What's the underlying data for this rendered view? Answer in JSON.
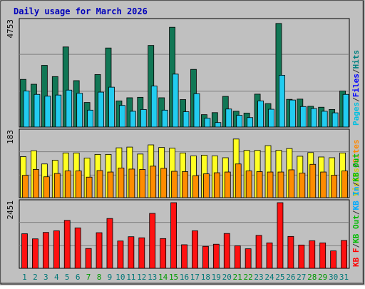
{
  "chart_data": [
    {
      "type": "bar",
      "title": "Daily usage for March 2026",
      "ylabel_top_tick": "4753",
      "legend": [
        {
          "label": "Pages",
          "color": "#00c0e0"
        },
        {
          "label": "/",
          "color": "#333333"
        },
        {
          "label": "Files",
          "color": "#0000ff"
        },
        {
          "label": "/",
          "color": "#333333"
        },
        {
          "label": "Hits",
          "color": "#008080"
        }
      ],
      "categories": [
        "1",
        "2",
        "3",
        "4",
        "5",
        "6",
        "7",
        "8",
        "9",
        "10",
        "11",
        "12",
        "13",
        "14",
        "15",
        "16",
        "17",
        "18",
        "19",
        "20",
        "21",
        "22",
        "23",
        "24",
        "25",
        "26",
        "27",
        "28",
        "29",
        "30",
        "31"
      ],
      "ylim": [
        0,
        4753
      ],
      "series": [
        {
          "name": "Hits",
          "color": "#117755",
          "values": [
            2116,
            1900,
            2740,
            2240,
            3556,
            2060,
            1090,
            2330,
            3510,
            1160,
            1300,
            1320,
            3624,
            1300,
            4430,
            1220,
            2560,
            550,
            640,
            1360,
            700,
            620,
            1460,
            1040,
            4600,
            1230,
            1240,
            920,
            880,
            780,
            1600
          ]
        },
        {
          "name": "Files",
          "color": "#22ccf0",
          "values": [
            1600,
            1450,
            1370,
            1420,
            1640,
            1500,
            750,
            1550,
            1770,
            960,
            700,
            780,
            1820,
            750,
            2350,
            680,
            1480,
            390,
            200,
            800,
            520,
            420,
            1160,
            790,
            2300,
            1200,
            910,
            820,
            700,
            630,
            1450
          ]
        },
        {
          "name": "Pages",
          "color": "#0088cc",
          "values": [
            0,
            0,
            0,
            0,
            0,
            0,
            0,
            0,
            0,
            0,
            0,
            0,
            0,
            0,
            0,
            0,
            0,
            0,
            0,
            0,
            0,
            0,
            0,
            0,
            0,
            0,
            0,
            0,
            0,
            0,
            0
          ]
        }
      ]
    },
    {
      "type": "bar",
      "ylabel_top_tick": "183",
      "legend": [
        {
          "label": "Visits",
          "color": "#cccc00"
        },
        {
          "label": "/",
          "color": "#333333"
        },
        {
          "label": "Sites",
          "color": "#ff8800"
        }
      ],
      "categories": [
        "1",
        "2",
        "3",
        "4",
        "5",
        "6",
        "7",
        "8",
        "9",
        "10",
        "11",
        "12",
        "13",
        "14",
        "15",
        "16",
        "17",
        "18",
        "19",
        "20",
        "21",
        "22",
        "23",
        "24",
        "25",
        "26",
        "27",
        "28",
        "29",
        "30",
        "31"
      ],
      "ylim": [
        0,
        183
      ],
      "series": [
        {
          "name": "Visits",
          "color": "#ffff22",
          "values": [
            112,
            128,
            92,
            102,
            122,
            122,
            108,
            118,
            118,
            136,
            138,
            119,
            144,
            137,
            135,
            122,
            114,
            116,
            114,
            109,
            160,
            129,
            129,
            142,
            129,
            134,
            113,
            123,
            111,
            109,
            122
          ]
        },
        {
          "name": "Sites",
          "color": "#ff8c00",
          "values": [
            61,
            77,
            57,
            66,
            73,
            73,
            56,
            74,
            70,
            81,
            78,
            77,
            86,
            80,
            72,
            71,
            60,
            65,
            68,
            70,
            92,
            73,
            71,
            70,
            70,
            76,
            67,
            91,
            70,
            61,
            73
          ]
        }
      ]
    },
    {
      "type": "bar",
      "ylabel_top_tick": "2451",
      "legend": [
        {
          "label": "KB F",
          "color": "#ff0000"
        },
        {
          "label": "/",
          "color": "#333333"
        },
        {
          "label": "KB Out",
          "color": "#00bb00"
        },
        {
          "label": "/",
          "color": "#333333"
        },
        {
          "label": "KB In",
          "color": "#00aaff"
        },
        {
          "label": "/",
          "color": "#333333"
        },
        {
          "label": "KB Out",
          "color": "#00bb00"
        }
      ],
      "categories": [
        "1",
        "2",
        "3",
        "4",
        "5",
        "6",
        "7",
        "8",
        "9",
        "10",
        "11",
        "12",
        "13",
        "14",
        "15",
        "16",
        "17",
        "18",
        "19",
        "20",
        "21",
        "22",
        "23",
        "24",
        "25",
        "26",
        "27",
        "28",
        "29",
        "30",
        "31"
      ],
      "ylim": [
        0,
        2451
      ],
      "series": [
        {
          "name": "KB F",
          "color": "#ff1111",
          "values": [
            1290,
            1100,
            1340,
            1400,
            1790,
            1510,
            740,
            1330,
            1860,
            1020,
            1180,
            1140,
            2050,
            1110,
            2451,
            880,
            1400,
            820,
            900,
            1300,
            840,
            730,
            1230,
            950,
            2451,
            1190,
            870,
            1030,
            950,
            650,
            1040
          ]
        }
      ]
    }
  ],
  "x_label_colors": {
    "weekday": "#007777",
    "weekend": "#009900"
  },
  "weekend_days": [
    "7",
    "8",
    "14",
    "15",
    "21",
    "22",
    "28",
    "29"
  ]
}
